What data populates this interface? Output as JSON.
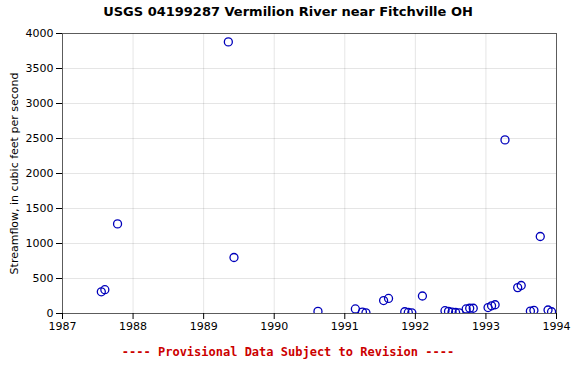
{
  "chart_data": {
    "type": "scatter",
    "title": "USGS 04199287 Vermilion River near Fitchville OH",
    "ylabel": "Streamflow, in cubic feet per second",
    "x": [
      1987.55,
      1987.6,
      1987.78,
      1989.35,
      1989.43,
      1990.62,
      1991.15,
      1991.25,
      1991.3,
      1991.55,
      1991.62,
      1991.85,
      1991.9,
      1991.95,
      1992.1,
      1992.42,
      1992.47,
      1992.52,
      1992.57,
      1992.62,
      1992.72,
      1992.77,
      1992.82,
      1993.03,
      1993.08,
      1993.13,
      1993.27,
      1993.45,
      1993.5,
      1993.63,
      1993.68,
      1993.77,
      1993.88,
      1993.93
    ],
    "values": [
      310,
      340,
      1280,
      3880,
      800,
      30,
      65,
      20,
      10,
      185,
      215,
      25,
      15,
      10,
      250,
      40,
      30,
      20,
      15,
      10,
      65,
      75,
      75,
      85,
      110,
      125,
      2480,
      370,
      400,
      35,
      45,
      1100,
      50,
      25
    ],
    "xlim": [
      1987.0,
      1994.0
    ],
    "ylim": [
      0,
      4000
    ],
    "xticks": [
      1987,
      1988,
      1989,
      1990,
      1991,
      1992,
      1993,
      1994
    ],
    "yticks": [
      0,
      500,
      1000,
      1500,
      2000,
      2500,
      3000,
      3500,
      4000
    ],
    "grid": true,
    "color": "#0000bb",
    "marker": "circle",
    "annotations": [
      {
        "text": "---- Provisional Data Subject to Revision ----",
        "color": "#cc0000"
      }
    ]
  }
}
